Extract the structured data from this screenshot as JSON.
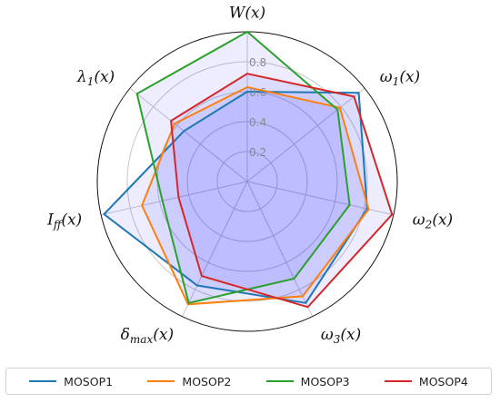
{
  "chart_data": {
    "type": "radar",
    "axes": [
      "W(x)",
      "ω1(x)",
      "ω2(x)",
      "ω3(x)",
      "δmax(x)",
      "Iff(x)",
      "λ1(x)"
    ],
    "axis_labels_display": [
      {
        "main": "W",
        "sub": "",
        "tail": "(x)"
      },
      {
        "main": "ω",
        "sub": "1",
        "tail": "(x)"
      },
      {
        "main": "ω",
        "sub": "2",
        "tail": "(x)"
      },
      {
        "main": "ω",
        "sub": "3",
        "tail": "(x)"
      },
      {
        "main": "δ",
        "sub": "max",
        "tail": "(x)"
      },
      {
        "main": "I",
        "sub": "ff",
        "tail": "(x)"
      },
      {
        "main": "λ",
        "sub": "1",
        "tail": "(x)"
      }
    ],
    "rticks": [
      "0.2",
      "0.4",
      "0.6",
      "0.8"
    ],
    "rtick_values": [
      0.2,
      0.4,
      0.6,
      0.8
    ],
    "rlim": [
      0,
      1
    ],
    "grid": true,
    "legend_position": "bottom",
    "area_fill_color": "#0000ff",
    "series": [
      {
        "name": "MOSOP1",
        "color": "#1f77b4",
        "values": [
          0.6,
          0.95,
          0.82,
          0.9,
          0.77,
          0.98,
          0.54
        ]
      },
      {
        "name": "MOSOP2",
        "color": "#ff7f0e",
        "values": [
          0.63,
          0.79,
          0.83,
          0.85,
          0.91,
          0.72,
          0.62
        ]
      },
      {
        "name": "MOSOP3",
        "color": "#2ca02c",
        "values": [
          1.0,
          0.77,
          0.7,
          0.72,
          0.9,
          0.58,
          0.94
        ]
      },
      {
        "name": "MOSOP4",
        "color": "#d62728",
        "values": [
          0.72,
          0.91,
          0.99,
          0.93,
          0.7,
          0.47,
          0.65
        ]
      }
    ]
  }
}
